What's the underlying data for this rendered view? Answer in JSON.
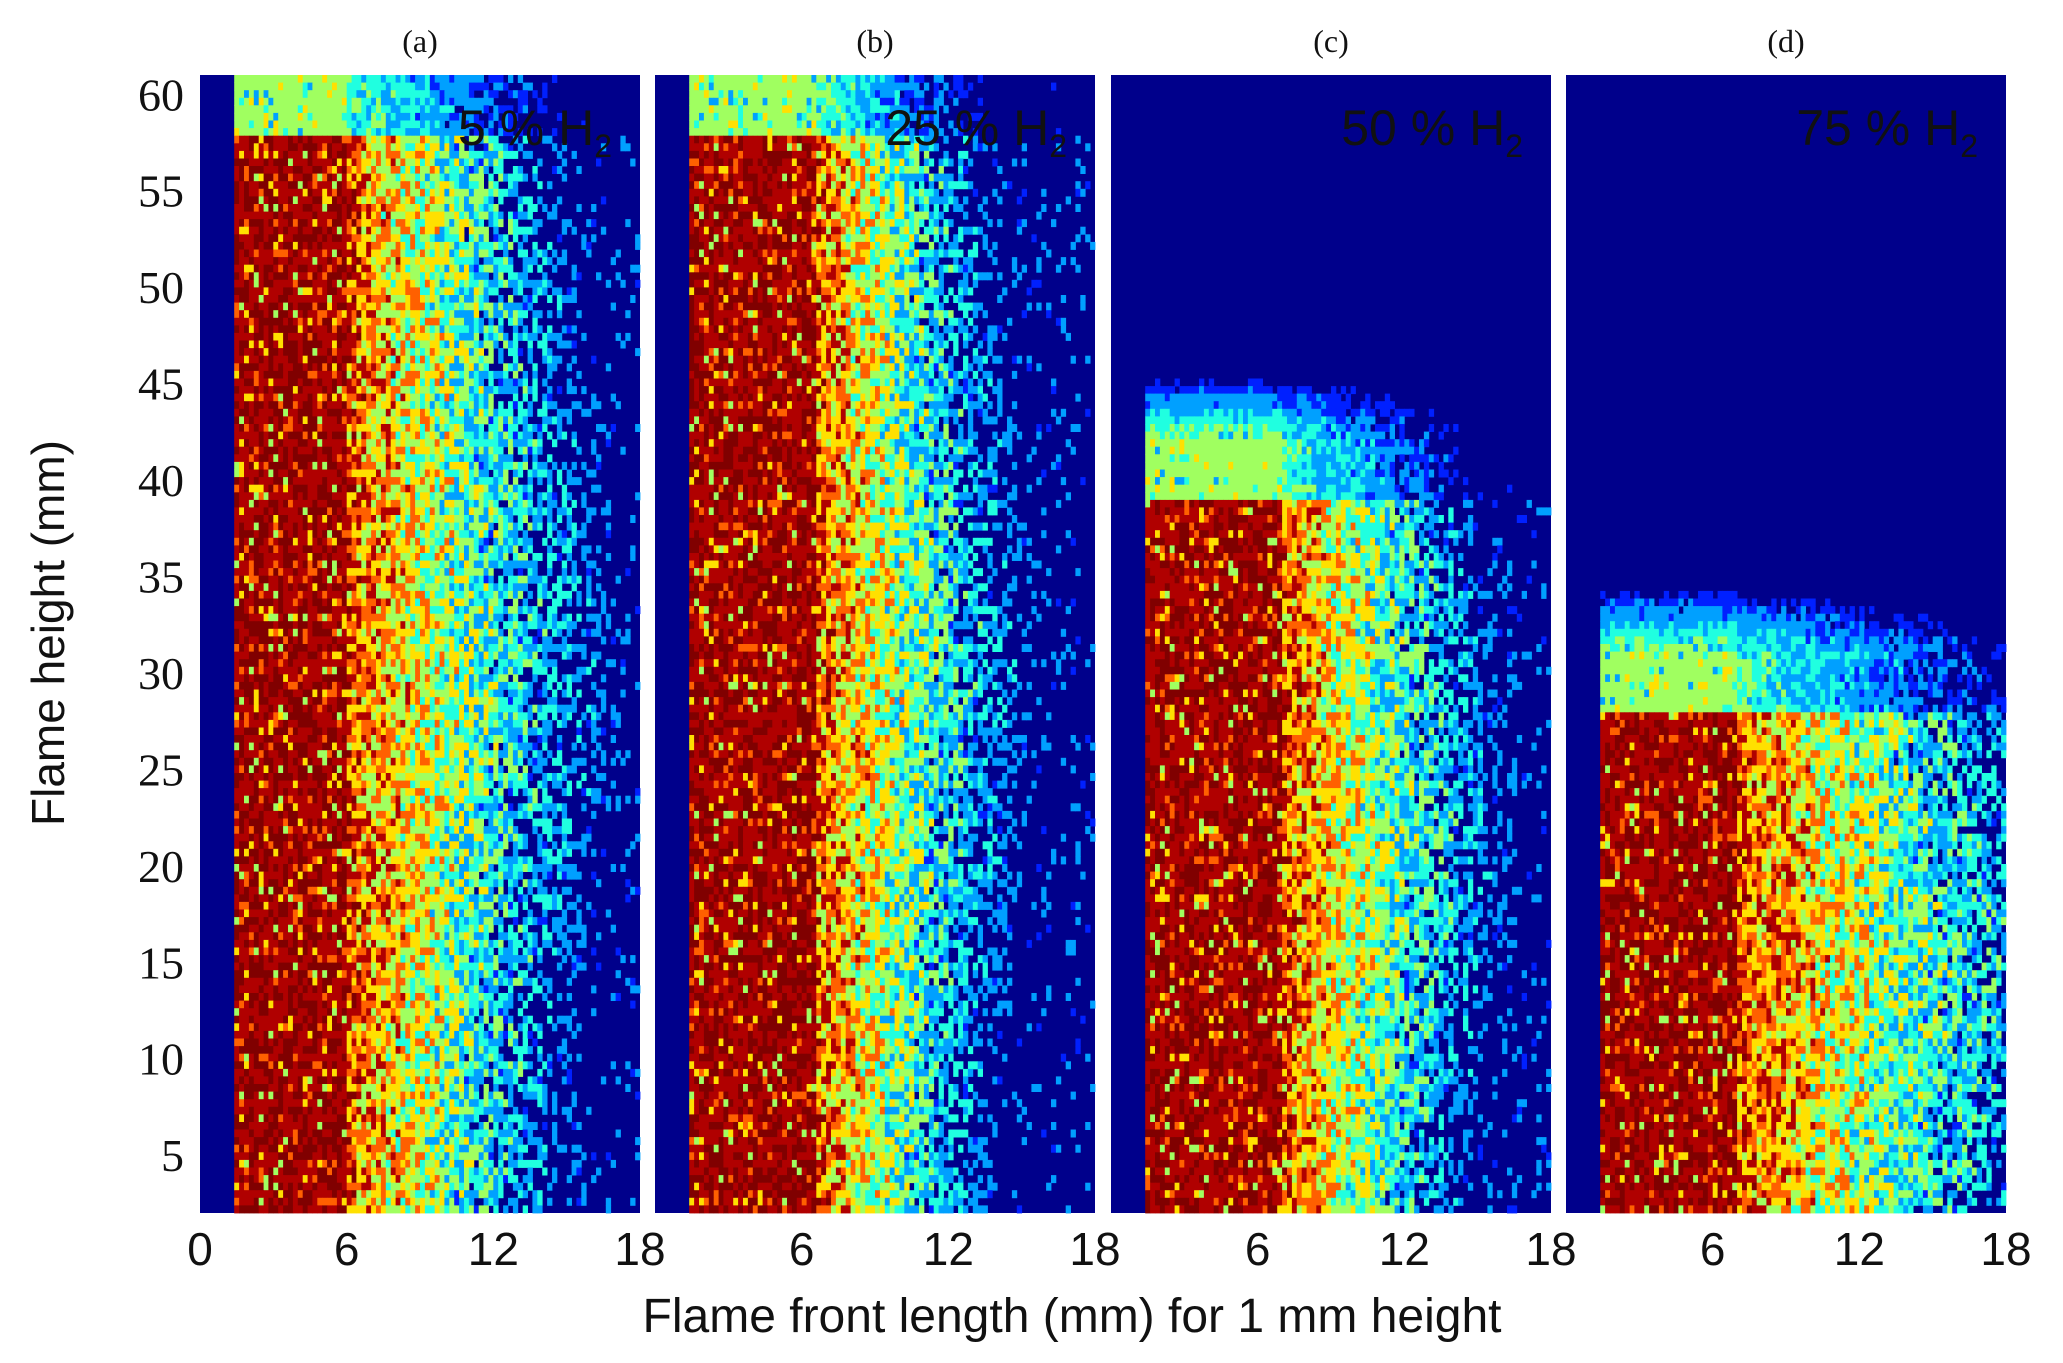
{
  "chart_data": {
    "type": "heatmap",
    "ylabel": "Flame height (mm)",
    "xlabel": "Flame front length (mm) for 1 mm height",
    "xlim": [
      0,
      18
    ],
    "ylim": [
      2,
      61
    ],
    "y_ticks": [
      5,
      10,
      15,
      20,
      25,
      30,
      35,
      40,
      45,
      50,
      55,
      60
    ],
    "colormap": [
      "#00007f",
      "#0020ff",
      "#00a0ff",
      "#20ffe0",
      "#a0ff60",
      "#ffe000",
      "#ff6000",
      "#b00000",
      "#800000"
    ],
    "background_color": "#00008b",
    "panels": [
      {
        "label": "(a)",
        "annotation": "5 % H",
        "annotation_sub": "2",
        "x_ticks": [
          "0",
          "6",
          "12",
          "18"
        ],
        "core_x_range": [
          1.5,
          6.0
        ],
        "max_height": 61,
        "peak_height": 30,
        "spread_x_max": 14
      },
      {
        "label": "(b)",
        "annotation": "25 % H",
        "annotation_sub": "2",
        "x_ticks": [
          "6",
          "12",
          "18"
        ],
        "core_x_range": [
          1.5,
          6.5
        ],
        "max_height": 61,
        "peak_height": 30,
        "spread_x_max": 13
      },
      {
        "label": "(c)",
        "annotation": "50 % H",
        "annotation_sub": "2",
        "x_ticks": [
          "6",
          "12",
          "18"
        ],
        "core_x_range": [
          1.5,
          7.0
        ],
        "max_height": 42,
        "peak_height": 22,
        "spread_x_max": 14
      },
      {
        "label": "(d)",
        "annotation": "75 % H",
        "annotation_sub": "2",
        "x_ticks": [
          "6",
          "12",
          "18"
        ],
        "core_x_range": [
          1.5,
          7.0
        ],
        "max_height": 31,
        "peak_height": 14,
        "spread_x_max": 18
      }
    ]
  }
}
